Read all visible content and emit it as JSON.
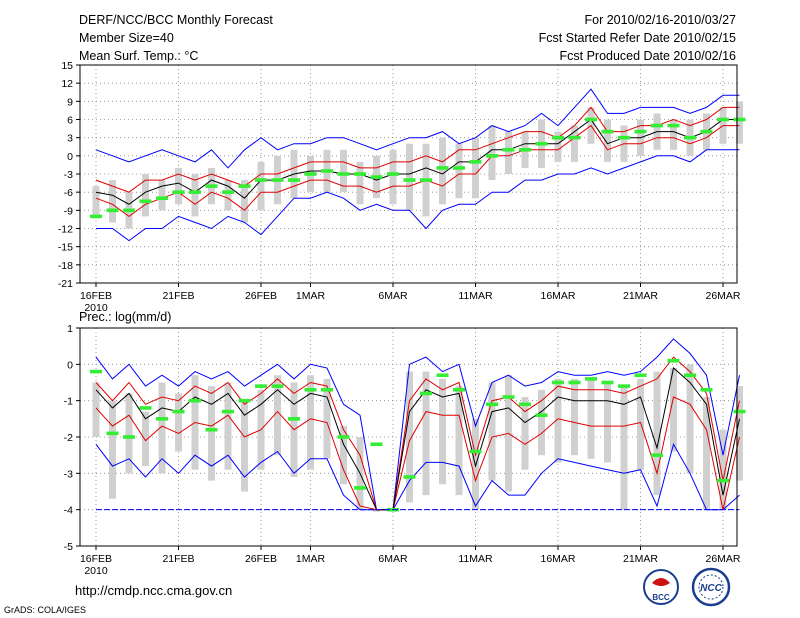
{
  "header": {
    "title": "DERF/NCC/BCC Monthly Forecast",
    "member_size": "Member Size=40",
    "variable": "Mean Surf. Temp.: °C",
    "period": "For 2010/02/16-2010/03/27",
    "fcst_started": "Fcst Started Refer Date 2010/02/15",
    "fcst_produced": "Fcst Produced Date 2010/02/16"
  },
  "footer": {
    "url": "http://cmdp.ncc.cma.gov.cn",
    "grads": "GrADS: COLA/IGES",
    "logo_bcc_text": "BCC",
    "logo_ncc_text": "NCC"
  },
  "colors": {
    "max": "#0000ff",
    "pct": "#e00000",
    "mean": "#000000",
    "box": "#d0d0d0",
    "obs": "#33ee33"
  },
  "chart_data": [
    {
      "type": "line",
      "title": "Mean Surf. Temp.: °C",
      "ylim": [
        -21,
        15
      ],
      "yticks": [
        15,
        12,
        9,
        6,
        3,
        0,
        -3,
        -6,
        -9,
        -12,
        -15,
        -18,
        -21
      ],
      "x_tick_index": [
        0,
        5,
        10,
        13,
        18,
        23,
        28,
        33,
        38
      ],
      "x_tick_labels": [
        "16FEB",
        "21FEB",
        "26FEB",
        "1MAR",
        "6MAR",
        "11MAR",
        "16MAR",
        "21MAR",
        "26MAR"
      ],
      "x_sub_label": "2010",
      "days": 39,
      "series": [
        {
          "name": "max",
          "values": [
            1,
            0,
            -1,
            0,
            1,
            0,
            -1,
            1,
            -2,
            1,
            3,
            1,
            2,
            2,
            3,
            3,
            2,
            1,
            2,
            3,
            3,
            4,
            2,
            3,
            5,
            4,
            5,
            7,
            5,
            8,
            11,
            7,
            7,
            8,
            8,
            8,
            7,
            8,
            10,
            10
          ]
        },
        {
          "name": "upper",
          "values": [
            -4,
            -5,
            -6,
            -4,
            -4,
            -3,
            -4,
            -3,
            -4,
            -5,
            -3,
            -3,
            -2,
            -1,
            -1,
            -1,
            -2,
            -2,
            -1,
            -1,
            0,
            -1,
            1,
            1,
            2,
            3,
            4,
            4,
            3,
            5,
            8,
            4,
            4,
            5,
            5,
            6,
            5,
            6,
            8,
            8
          ]
        },
        {
          "name": "mean",
          "values": [
            -6,
            -6.5,
            -8,
            -6,
            -5,
            -4.5,
            -6,
            -4,
            -5,
            -7,
            -4,
            -4,
            -3,
            -2.5,
            -2.5,
            -3,
            -3,
            -4,
            -3,
            -3,
            -2,
            -3,
            -1,
            -1,
            1,
            1,
            2,
            2,
            2,
            4,
            6,
            2,
            3,
            3,
            4,
            4,
            3,
            4,
            6,
            6
          ]
        },
        {
          "name": "lower",
          "values": [
            -7,
            -8,
            -10,
            -8,
            -7,
            -6,
            -8,
            -6,
            -7,
            -9,
            -6,
            -6,
            -5,
            -4,
            -4,
            -5,
            -5,
            -6,
            -5,
            -5,
            -4,
            -5,
            -3,
            -3,
            0,
            0,
            1,
            1,
            1,
            3,
            5,
            1,
            2,
            2,
            3,
            3,
            2,
            3,
            5,
            5
          ]
        },
        {
          "name": "min",
          "values": [
            -12,
            -12,
            -14,
            -12,
            -12,
            -10,
            -11,
            -12,
            -10,
            -11,
            -13,
            -10,
            -7,
            -7,
            -6,
            -7,
            -9,
            -8,
            -9,
            -9,
            -12,
            -9,
            -8,
            -8,
            -6,
            -6,
            -4,
            -4,
            -3,
            -3,
            -2,
            -3,
            -2,
            -1,
            0,
            0,
            -1,
            1,
            1,
            1
          ]
        },
        {
          "name": "box_top",
          "values": [
            -5,
            -4,
            -6,
            -3,
            -4,
            -2,
            -3,
            -2,
            -4,
            -4,
            -1,
            0,
            1,
            0,
            1,
            1,
            -1,
            0,
            1,
            2,
            2,
            3,
            2,
            3,
            5,
            4,
            4,
            6,
            4,
            5,
            8,
            6,
            5,
            6,
            7,
            6,
            6,
            7,
            8,
            9
          ]
        },
        {
          "name": "box_bottom",
          "values": [
            -10,
            -11,
            -12,
            -10,
            -9,
            -8,
            -10,
            -8,
            -9,
            -11,
            -9,
            -8,
            -7,
            -6,
            -6,
            -6,
            -8,
            -7,
            -8,
            -9,
            -10,
            -8,
            -7,
            -7,
            -4,
            -3,
            -2,
            -2,
            -1,
            -1,
            2,
            -1,
            -1,
            0,
            1,
            1,
            0,
            1,
            2,
            2
          ]
        },
        {
          "name": "observed",
          "values": [
            -10,
            -9,
            -9,
            -7.5,
            -7,
            -6,
            -6,
            -5,
            -6,
            -5,
            -4,
            -4,
            -4,
            -3,
            -2.5,
            -3,
            -3,
            -3.5,
            -3,
            -4,
            -4,
            -2,
            -2,
            -1,
            0,
            1,
            1,
            2,
            3,
            3,
            6,
            4,
            3,
            4,
            5,
            5,
            3,
            4,
            6,
            6
          ]
        }
      ]
    },
    {
      "type": "line",
      "title": "Prec.: log(mm/d)",
      "ylim": [
        -5,
        1
      ],
      "yticks": [
        1,
        0,
        -1,
        -2,
        -3,
        -4,
        -5
      ],
      "x_tick_index": [
        0,
        5,
        10,
        13,
        18,
        23,
        28,
        33,
        38
      ],
      "x_tick_labels": [
        "16FEB",
        "21FEB",
        "26FEB",
        "1MAR",
        "6MAR",
        "11MAR",
        "16MAR",
        "21MAR",
        "26MAR"
      ],
      "x_sub_label": "2010",
      "days": 39,
      "series": [
        {
          "name": "max",
          "values": [
            0.2,
            -0.4,
            0,
            -0.6,
            -0.3,
            -0.6,
            -0.2,
            -0.4,
            -0.2,
            -0.6,
            -0.3,
            0,
            -0.4,
            0,
            -0.1,
            -1.1,
            -1.4,
            -4,
            -4,
            0,
            0.2,
            -0.2,
            0,
            -1.7,
            -0.5,
            -0.3,
            -0.6,
            -0.5,
            -0.2,
            -0.3,
            -0.3,
            -0.2,
            -0.3,
            -0.2,
            0.2,
            0.7,
            0.3,
            -0.3,
            -2.5,
            -0.3
          ]
        },
        {
          "name": "upper",
          "values": [
            -0.5,
            -1,
            -0.5,
            -1.1,
            -0.9,
            -1,
            -0.6,
            -0.8,
            -0.5,
            -1.1,
            -0.8,
            -0.4,
            -0.8,
            -0.5,
            -0.6,
            -1.8,
            -2.5,
            -4,
            -4,
            -1,
            -0.4,
            -0.7,
            -0.5,
            -2.5,
            -1,
            -0.9,
            -1.3,
            -1,
            -0.6,
            -0.7,
            -0.7,
            -0.7,
            -0.8,
            -0.6,
            -0.4,
            0.2,
            -0.2,
            -0.8,
            -3.2,
            -1
          ]
        },
        {
          "name": "mean",
          "values": [
            -0.7,
            -1.2,
            -0.8,
            -1.5,
            -1.2,
            -1.3,
            -0.9,
            -1.1,
            -0.8,
            -1.4,
            -1.1,
            -0.7,
            -1.1,
            -0.8,
            -0.9,
            -2.2,
            -3,
            -4,
            -4,
            -1.3,
            -0.7,
            -0.9,
            -0.8,
            -2.8,
            -1.3,
            -1.2,
            -1.6,
            -1.3,
            -0.9,
            -1,
            -1,
            -1,
            -1.1,
            -0.9,
            -2.3,
            -0.1,
            -0.5,
            -1.1,
            -3.6,
            -1.5
          ]
        },
        {
          "name": "lower",
          "values": [
            -1.2,
            -1.7,
            -1.4,
            -2.1,
            -1.7,
            -1.9,
            -1.6,
            -1.7,
            -1.4,
            -2,
            -1.8,
            -1.3,
            -1.8,
            -1.5,
            -1.6,
            -2.9,
            -3.9,
            -4,
            -4,
            -2.1,
            -1.3,
            -1.4,
            -1.4,
            -3.2,
            -2,
            -1.9,
            -2.2,
            -1.9,
            -1.5,
            -1.6,
            -1.7,
            -1.7,
            -1.7,
            -1.6,
            -3,
            -0.9,
            -1.1,
            -1.8,
            -4,
            -2
          ]
        },
        {
          "name": "min",
          "values": [
            -2.2,
            -2.8,
            -2.6,
            -3.1,
            -2.6,
            -3,
            -2.5,
            -2.8,
            -2.5,
            -3.1,
            -2.7,
            -2.4,
            -3,
            -2.6,
            -2.6,
            -3.6,
            -4,
            -4,
            -4,
            -3.2,
            -2.7,
            -2.7,
            -2.8,
            -3.9,
            -3.2,
            -3.6,
            -3.6,
            -3,
            -2.6,
            -2.7,
            -2.8,
            -2.9,
            -3,
            -2.9,
            -3.9,
            -2.2,
            -3,
            -4,
            -4,
            -3.6
          ]
        },
        {
          "name": "box_top",
          "values": [
            -0.5,
            -1,
            -0.8,
            -1.3,
            -0.5,
            -0.8,
            -0.3,
            -0.6,
            -0.5,
            -1,
            -0.7,
            -0.3,
            -0.5,
            -0.3,
            -0.4,
            -1.7,
            -2,
            -4,
            -4,
            -0.2,
            -0.2,
            -0.4,
            -0.6,
            -1.5,
            -0.5,
            -0.3,
            -0.9,
            -0.7,
            -0.4,
            -0.4,
            -0.4,
            -0.5,
            -0.6,
            -0.4,
            -0.2,
            -0.1,
            0,
            -0.9,
            -1.8,
            -0.6
          ]
        },
        {
          "name": "box_bottom",
          "values": [
            -2,
            -3.7,
            -3,
            -2.8,
            -3,
            -2.4,
            -2.9,
            -3.2,
            -2.9,
            -3.5,
            -2.9,
            -2.5,
            -3.1,
            -2.9,
            -2.6,
            -3.3,
            -4,
            -4,
            -4,
            -3.8,
            -3.6,
            -3.3,
            -3.6,
            -4,
            -3.2,
            -3.5,
            -2.9,
            -2.5,
            -2.7,
            -2.5,
            -2.6,
            -2.7,
            -4,
            -2.9,
            -3.6,
            -2.4,
            -3,
            -4,
            -4,
            -3.2
          ]
        },
        {
          "name": "observed",
          "values": [
            -0.2,
            -1.9,
            -2,
            -1.2,
            -1.5,
            -1.3,
            -1,
            -1.8,
            -1.3,
            -1,
            -0.6,
            -0.6,
            -1.5,
            -0.7,
            -0.7,
            -2,
            -3.4,
            -2.2,
            -4,
            -3.1,
            -0.8,
            -0.3,
            -0.7,
            -2.4,
            -1.1,
            -0.9,
            -1.1,
            -1.4,
            -0.5,
            -0.5,
            -0.4,
            -0.5,
            -0.6,
            -0.3,
            -2.5,
            0.1,
            -0.3,
            -0.7,
            -3.2,
            -1.3
          ]
        }
      ]
    }
  ]
}
